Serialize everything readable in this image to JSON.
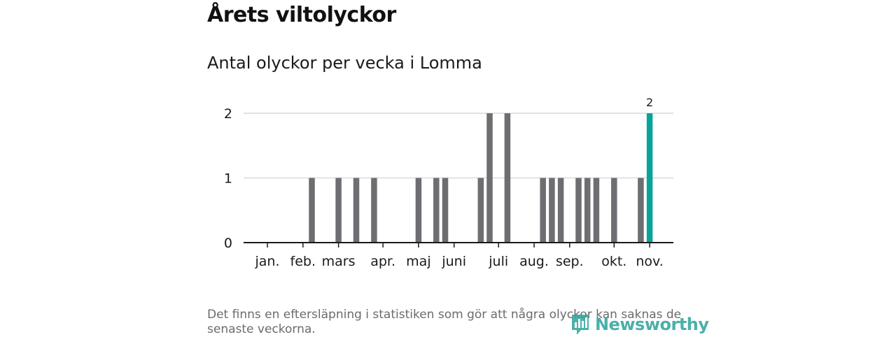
{
  "title": "Årets viltolyckor",
  "subtitle": "Antal olyckor per vecka i Lomma",
  "footnote": "Det finns en eftersläpning i statistiken som gör att några olyckor kan saknas de senaste veckorna.",
  "logo_text": "Newsworthy",
  "colors": {
    "bar": "#6e6e72",
    "highlight": "#0aa39a",
    "grid": "#d9d9d9",
    "axis": "#1a1a1a",
    "logo": "#2ba39a"
  },
  "chart_data": {
    "type": "bar",
    "title": "Antal olyckor per vecka i Lomma",
    "xlabel": "",
    "ylabel": "",
    "ylim": [
      0,
      2
    ],
    "yticks": [
      "0",
      "1",
      "2"
    ],
    "month_labels": [
      "jan.",
      "feb.",
      "mars",
      "apr.",
      "maj",
      "juni",
      "juli",
      "aug.",
      "sep.",
      "okt.",
      "nov."
    ],
    "month_start_weeks": [
      1,
      5,
      9,
      14,
      18,
      22,
      27,
      31,
      35,
      40,
      44
    ],
    "weeks": [
      1,
      2,
      3,
      4,
      5,
      6,
      7,
      8,
      9,
      10,
      11,
      12,
      13,
      14,
      15,
      16,
      17,
      18,
      19,
      20,
      21,
      22,
      23,
      24,
      25,
      26,
      27,
      28,
      29,
      30,
      31,
      32,
      33,
      34,
      35,
      36,
      37,
      38,
      39,
      40,
      41,
      42,
      43,
      44
    ],
    "values": [
      0,
      0,
      0,
      0,
      0,
      1,
      0,
      0,
      1,
      0,
      1,
      0,
      1,
      0,
      0,
      0,
      0,
      1,
      0,
      1,
      1,
      0,
      0,
      0,
      1,
      2,
      0,
      2,
      0,
      0,
      0,
      1,
      1,
      1,
      0,
      1,
      1,
      1,
      0,
      1,
      0,
      0,
      1,
      2
    ],
    "highlight_index": 43,
    "highlight_label": "2"
  }
}
